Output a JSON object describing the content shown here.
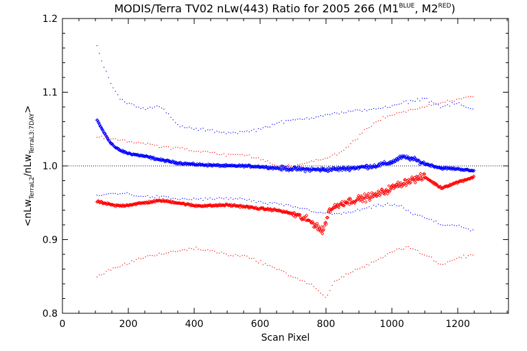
{
  "chart_data": {
    "type": "scatter",
    "title": {
      "main": "MODIS/Terra TV02 nLw(443) Ratio for 2005 266 (M1",
      "m1_sup": "BLUE",
      "sep": ", M2",
      "m2_sup": "RED",
      "close": ")"
    },
    "xlabel": "Scan Pixel",
    "ylabel": {
      "open": "<nLw",
      "sub1": "TerraL2",
      "mid": "/nLw",
      "sub2": "TerraL3:7DAY",
      "close": ">"
    },
    "xlim": [
      0,
      1354
    ],
    "ylim": [
      0.8,
      1.2
    ],
    "xticks": [
      0,
      200,
      400,
      600,
      800,
      1000,
      1200
    ],
    "xtick_labels": [
      "0",
      "200",
      "400",
      "600",
      "800",
      "1000",
      "1200"
    ],
    "yticks": [
      0.8,
      0.9,
      1.0,
      1.1,
      1.2
    ],
    "ytick_labels": [
      "0.8",
      "0.9",
      "1.0",
      "1.1",
      "1.2"
    ],
    "reference_line": {
      "y": 1.0,
      "style": "dotted"
    },
    "series": [
      {
        "color": "#0000ff",
        "mean": {
          "x": [
            105,
            120,
            140,
            160,
            180,
            200,
            250,
            300,
            350,
            400,
            450,
            500,
            550,
            600,
            650,
            700,
            750,
            800,
            850,
            900,
            950,
            1000,
            1030,
            1060,
            1100,
            1150,
            1200,
            1250
          ],
          "y": [
            1.062,
            1.05,
            1.035,
            1.025,
            1.02,
            1.017,
            1.013,
            1.008,
            1.004,
            1.002,
            1.001,
            1.0,
            1.0,
            0.999,
            0.997,
            0.996,
            0.995,
            0.995,
            0.996,
            0.998,
            1.0,
            1.005,
            1.012,
            1.01,
            1.003,
            0.997,
            0.996,
            0.993
          ]
        },
        "upper": {
          "x": [
            105,
            120,
            140,
            160,
            180,
            200,
            250,
            300,
            350,
            400,
            450,
            500,
            550,
            600,
            650,
            700,
            750,
            800,
            850,
            900,
            950,
            1000,
            1030,
            1060,
            1100,
            1150,
            1200,
            1250
          ],
          "y": [
            1.165,
            1.14,
            1.12,
            1.1,
            1.09,
            1.085,
            1.078,
            1.08,
            1.055,
            1.05,
            1.048,
            1.045,
            1.046,
            1.05,
            1.058,
            1.062,
            1.065,
            1.07,
            1.072,
            1.075,
            1.078,
            1.08,
            1.085,
            1.088,
            1.092,
            1.08,
            1.085,
            1.075
          ]
        },
        "lower": {
          "x": [
            105,
            120,
            140,
            160,
            180,
            200,
            250,
            300,
            350,
            400,
            450,
            500,
            550,
            600,
            650,
            700,
            750,
            800,
            850,
            900,
            950,
            1000,
            1030,
            1060,
            1100,
            1150,
            1200,
            1250
          ],
          "y": [
            0.96,
            0.96,
            0.962,
            0.963,
            0.963,
            0.962,
            0.958,
            0.958,
            0.955,
            0.955,
            0.955,
            0.956,
            0.955,
            0.95,
            0.948,
            0.945,
            0.94,
            0.935,
            0.935,
            0.94,
            0.945,
            0.948,
            0.945,
            0.935,
            0.93,
            0.92,
            0.92,
            0.91
          ]
        }
      },
      {
        "color": "#ff0000",
        "mean": {
          "x": [
            105,
            120,
            140,
            160,
            180,
            200,
            250,
            300,
            350,
            400,
            450,
            500,
            550,
            600,
            650,
            700,
            750,
            770,
            790,
            810,
            850,
            900,
            950,
            1000,
            1050,
            1100,
            1150,
            1200,
            1250
          ],
          "y": [
            0.952,
            0.95,
            0.948,
            0.946,
            0.946,
            0.947,
            0.95,
            0.953,
            0.95,
            0.946,
            0.946,
            0.947,
            0.945,
            0.942,
            0.94,
            0.935,
            0.925,
            0.92,
            0.91,
            0.94,
            0.95,
            0.955,
            0.96,
            0.97,
            0.98,
            0.985,
            0.97,
            0.978,
            0.985
          ]
        },
        "upper": {
          "x": [
            105,
            140,
            180,
            220,
            260,
            300,
            350,
            400,
            450,
            500,
            550,
            600,
            650,
            700,
            750,
            800,
            850,
            900,
            950,
            1000,
            1050,
            1100,
            1150,
            1200,
            1250
          ],
          "y": [
            1.04,
            1.038,
            1.035,
            1.032,
            1.03,
            1.025,
            1.025,
            1.02,
            1.018,
            1.015,
            1.015,
            1.01,
            1.0,
            1.0,
            1.005,
            1.01,
            1.02,
            1.04,
            1.06,
            1.07,
            1.075,
            1.08,
            1.085,
            1.09,
            1.095
          ]
        },
        "lower": {
          "x": [
            105,
            140,
            180,
            220,
            260,
            300,
            350,
            400,
            450,
            500,
            550,
            600,
            650,
            700,
            750,
            780,
            800,
            820,
            850,
            900,
            950,
            1000,
            1050,
            1100,
            1150,
            1200,
            1250
          ],
          "y": [
            0.85,
            0.858,
            0.865,
            0.872,
            0.878,
            0.88,
            0.885,
            0.888,
            0.885,
            0.88,
            0.878,
            0.87,
            0.86,
            0.85,
            0.84,
            0.83,
            0.82,
            0.84,
            0.85,
            0.86,
            0.87,
            0.885,
            0.89,
            0.88,
            0.865,
            0.875,
            0.88
          ]
        }
      }
    ]
  }
}
